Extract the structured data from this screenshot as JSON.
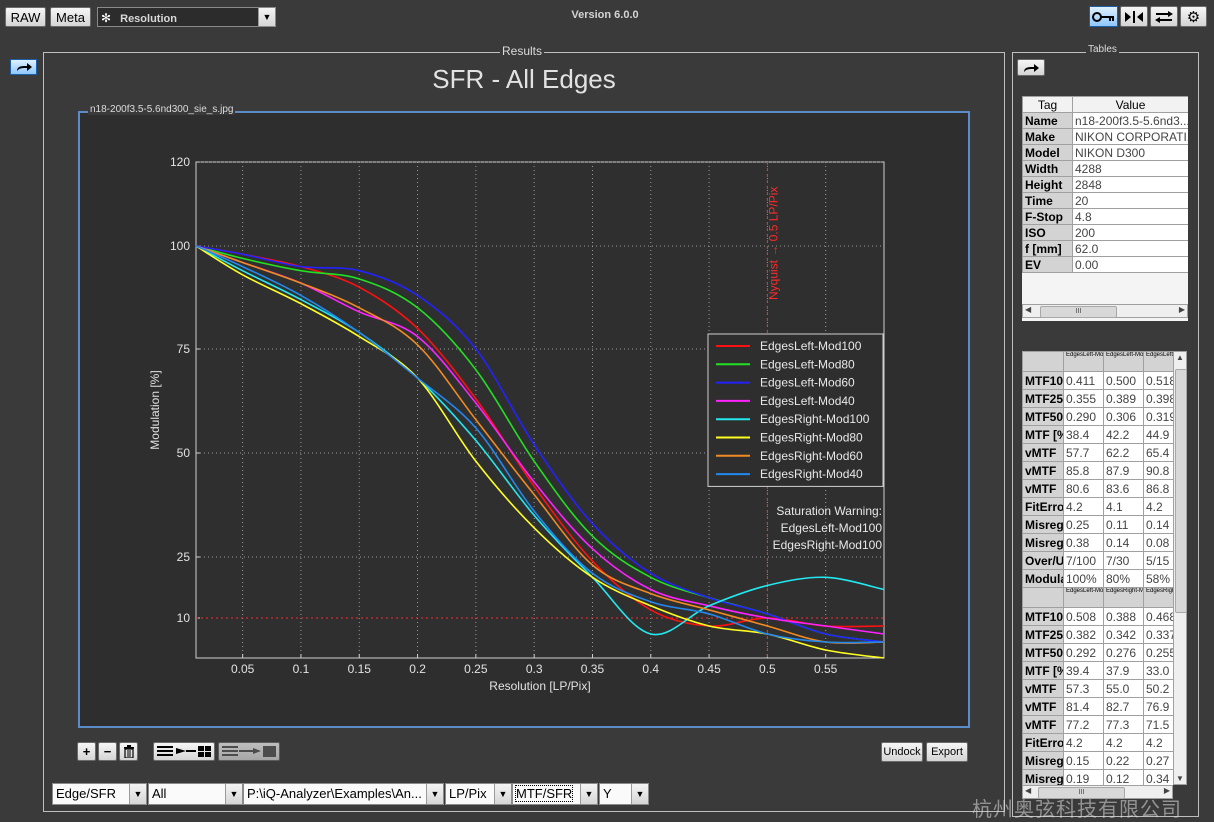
{
  "toolbar": {
    "raw_label": "RAW",
    "meta_label": "Meta",
    "module_select": "Resolution",
    "version": "Version 6.0.0"
  },
  "results": {
    "title_label": "Results",
    "chart_title": "SFR - All Edges",
    "file_label": "n18-200f3.5-5.6nd300_sie_s.jpg",
    "undock_label": "Undock",
    "export_label": "Export"
  },
  "tables": {
    "title_label": "Tables",
    "header": [
      "Tag",
      "Value"
    ],
    "meta_rows": [
      [
        "Name",
        "n18-200f3.5-5.6nd3..."
      ],
      [
        "Make",
        "NIKON CORPORATI..."
      ],
      [
        "Model",
        "NIKON D300"
      ],
      [
        "Width",
        "4288"
      ],
      [
        "Height",
        "2848"
      ],
      [
        "Time",
        "20"
      ],
      [
        "F-Stop",
        "4.8"
      ],
      [
        "ISO",
        "200"
      ],
      [
        "f [mm]",
        "62.0"
      ],
      [
        "EV",
        "0.00"
      ]
    ],
    "results_header_1": [
      "EdgesLeft-Mod100",
      "EdgesLeft-Mod80",
      "EdgesLeft-Mod60"
    ],
    "results_rows_1": [
      [
        "MTF10",
        "0.411",
        "0.500",
        "0.518"
      ],
      [
        "MTF25",
        "0.355",
        "0.389",
        "0.398"
      ],
      [
        "MTF50",
        "0.290",
        "0.306",
        "0.319"
      ],
      [
        "MTF [%]",
        "38.4",
        "42.2",
        "44.9"
      ],
      [
        "vMTF",
        "57.7",
        "62.2",
        "65.4"
      ],
      [
        "vMTF",
        "85.8",
        "87.9",
        "90.8"
      ],
      [
        "vMTF",
        "80.6",
        "83.6",
        "86.8"
      ],
      [
        "FitErro",
        "4.2",
        "4.1",
        "4.2"
      ],
      [
        "Misreg",
        "0.25",
        "0.11",
        "0.14"
      ],
      [
        "Misreg",
        "0.38",
        "0.14",
        "0.08"
      ],
      [
        "Over/U",
        "7/100",
        "7/30",
        "5/15"
      ],
      [
        "Modula",
        "100%",
        "80%",
        "58%"
      ]
    ],
    "results_header_2": [
      "EdgesLeft-Mod40",
      "EdgesRight-Mod100",
      "EdgesRight-Mod80"
    ],
    "results_rows_2": [
      [
        "MTF10",
        "0.508",
        "0.388",
        "0.468"
      ],
      [
        "MTF25",
        "0.382",
        "0.342",
        "0.337"
      ],
      [
        "MTF50",
        "0.292",
        "0.276",
        "0.255"
      ],
      [
        "MTF [%]",
        "39.4",
        "37.9",
        "33.0"
      ],
      [
        "vMTF",
        "57.3",
        "55.0",
        "50.2"
      ],
      [
        "vMTF",
        "81.4",
        "82.7",
        "76.9"
      ],
      [
        "vMTF",
        "77.2",
        "77.3",
        "71.5"
      ],
      [
        "FitErro",
        "4.2",
        "4.2",
        "4.2"
      ],
      [
        "Misreg",
        "0.15",
        "0.22",
        "0.27"
      ],
      [
        "Misreg",
        "0.19",
        "0.12",
        "0.34"
      ]
    ]
  },
  "bottom_bar": {
    "analysis": "Edge/SFR",
    "edges": "All",
    "path": "P:\\iQ-Analyzer\\Examples\\An...",
    "unit": "LP/Pix",
    "metric": "MTF/SFR",
    "axis": "Y"
  },
  "watermark": "杭州奥弦科技有限公司",
  "colors": {
    "EdgesLeft-Mod100": "#ff1010",
    "EdgesLeft-Mod80": "#22e022",
    "EdgesLeft-Mod60": "#2222ff",
    "EdgesLeft-Mod40": "#ff22ff",
    "EdgesRight-Mod100": "#22e8f0",
    "EdgesRight-Mod80": "#ffff22",
    "EdgesRight-Mod60": "#f08a22",
    "EdgesRight-Mod40": "#2288ee"
  },
  "chart_data": {
    "type": "line",
    "title": "SFR - All Edges",
    "xlabel": "Resolution [LP/Pix]",
    "ylabel": "Modulation [%]",
    "xlim": [
      0.01,
      0.6
    ],
    "ylim": [
      0,
      120
    ],
    "xticks": [
      "0.05",
      "0.1",
      "0.15",
      "0.2",
      "0.25",
      "0.3",
      "0.35",
      "0.4",
      "0.45",
      "0.5",
      "0.55"
    ],
    "yticks": [
      "10",
      "25",
      "50",
      "75",
      "100",
      "120"
    ],
    "grid": true,
    "legend_position": "right",
    "nyquist": {
      "x": 0.5,
      "label": "Nyquist → 0.5 LP/Pix"
    },
    "reference_line_y": 10,
    "annotation": [
      "Saturation Warning:",
      "EdgesLeft-Mod100",
      "EdgesRight-Mod100"
    ],
    "x": [
      0.01,
      0.05,
      0.1,
      0.15,
      0.2,
      0.25,
      0.3,
      0.35,
      0.4,
      0.45,
      0.5,
      0.55,
      0.6
    ],
    "series": [
      {
        "name": "EdgesLeft-Mod100",
        "values": [
          100,
          98,
          95,
          90,
          80,
          63,
          42,
          24,
          12,
          9,
          10,
          9,
          9
        ]
      },
      {
        "name": "EdgesLeft-Mod80",
        "values": [
          100,
          97,
          94,
          92,
          85,
          70,
          48,
          30,
          20,
          15,
          11,
          8,
          7
        ]
      },
      {
        "name": "EdgesLeft-Mod60",
        "values": [
          100,
          98,
          95,
          94,
          88,
          75,
          52,
          33,
          21,
          15,
          11,
          8,
          7
        ]
      },
      {
        "name": "EdgesLeft-Mod40",
        "values": [
          100,
          96,
          91,
          84,
          78,
          62,
          43,
          27,
          17,
          13,
          10,
          9,
          8
        ]
      },
      {
        "name": "EdgesRight-Mod100",
        "values": [
          100,
          94,
          87,
          79,
          68,
          53,
          35,
          20,
          8,
          13,
          18,
          20,
          17
        ]
      },
      {
        "name": "EdgesRight-Mod80",
        "values": [
          100,
          93,
          86,
          78,
          68,
          48,
          32,
          20,
          13,
          9,
          8,
          6,
          5
        ]
      },
      {
        "name": "EdgesRight-Mod60",
        "values": [
          100,
          96,
          91,
          85,
          76,
          58,
          40,
          23,
          16,
          12,
          9,
          7,
          7
        ]
      },
      {
        "name": "EdgesRight-Mod40",
        "values": [
          100,
          95,
          88,
          79,
          68,
          56,
          36,
          21,
          14,
          11,
          8,
          7,
          7
        ]
      }
    ]
  }
}
